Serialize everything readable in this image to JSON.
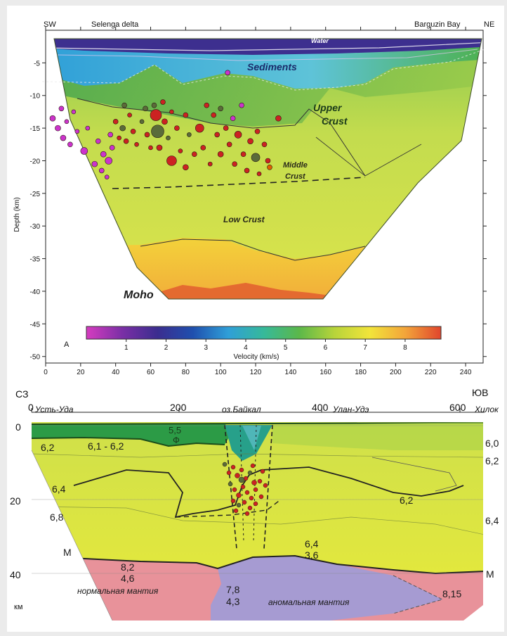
{
  "chart_data": [
    {
      "type": "heatmap",
      "title": "",
      "corner_labels": {
        "left": "SW",
        "right": "NE"
      },
      "top_labels": [
        "Selenga delta",
        "Barguzin Bay"
      ],
      "xlabel": "",
      "ylabel": "Depth (km)",
      "xlim": [
        0,
        250
      ],
      "ylim": [
        -51,
        0
      ],
      "x_ticks": [
        0,
        20,
        40,
        60,
        80,
        100,
        120,
        140,
        160,
        180,
        200,
        220,
        240
      ],
      "y_ticks": [
        -5,
        -10,
        -15,
        -20,
        -25,
        -30,
        -35,
        -40,
        -45,
        -50
      ],
      "layers": [
        "Water",
        "Sediments",
        "Upper Crust",
        "Middle Crust",
        "Low Crust",
        "Moho"
      ],
      "panel_letter": "A",
      "colorbar": {
        "label": "Velocity (km/s)",
        "ticks": [
          1,
          2,
          3,
          4,
          5,
          6,
          7,
          8
        ],
        "range": [
          0,
          8.9
        ],
        "colors": [
          "#d63cc0",
          "#7b2fa6",
          "#3b2d8f",
          "#1f4fae",
          "#2f9fd8",
          "#36b99a",
          "#5bb84a",
          "#b8d43a",
          "#f2e43a",
          "#f3a43a",
          "#e0452c"
        ]
      },
      "events": [
        {
          "x": 4,
          "y": -13.5,
          "r": 4,
          "c": "#cc33cc"
        },
        {
          "x": 7,
          "y": -15,
          "r": 4,
          "c": "#cc33cc"
        },
        {
          "x": 9,
          "y": -12,
          "r": 3.5,
          "c": "#cc33cc"
        },
        {
          "x": 10,
          "y": -16.5,
          "r": 4,
          "c": "#cc33cc"
        },
        {
          "x": 12,
          "y": -14,
          "r": 3,
          "c": "#cc33cc"
        },
        {
          "x": 14,
          "y": -17.5,
          "r": 3.5,
          "c": "#cc33cc"
        },
        {
          "x": 16,
          "y": -12.5,
          "r": 3,
          "c": "#cc33cc"
        },
        {
          "x": 18,
          "y": -15.5,
          "r": 3,
          "c": "#cc33cc"
        },
        {
          "x": 22,
          "y": -18.5,
          "r": 5,
          "c": "#cc33cc"
        },
        {
          "x": 24,
          "y": -15,
          "r": 3,
          "c": "#cc33cc"
        },
        {
          "x": 28,
          "y": -20.5,
          "r": 4,
          "c": "#cc33cc"
        },
        {
          "x": 30,
          "y": -17,
          "r": 3.5,
          "c": "#cc33cc"
        },
        {
          "x": 32,
          "y": -21.5,
          "r": 3.5,
          "c": "#cc33cc"
        },
        {
          "x": 33,
          "y": -19,
          "r": 4,
          "c": "#cc33cc"
        },
        {
          "x": 35,
          "y": -22.5,
          "r": 3,
          "c": "#cc33cc"
        },
        {
          "x": 36,
          "y": -20,
          "r": 5,
          "c": "#cc33cc"
        },
        {
          "x": 37,
          "y": -16,
          "r": 3.5,
          "c": "#cc33cc"
        },
        {
          "x": 38,
          "y": -18,
          "r": 3.5,
          "c": "#cc33cc"
        },
        {
          "x": 40,
          "y": -14,
          "r": 3.5,
          "c": "#cc2222"
        },
        {
          "x": 42,
          "y": -16.5,
          "r": 3,
          "c": "#cc2222"
        },
        {
          "x": 44,
          "y": -15,
          "r": 4,
          "c": "#5a6b3a"
        },
        {
          "x": 45,
          "y": -11.5,
          "r": 3.5,
          "c": "#5a6b3a"
        },
        {
          "x": 46,
          "y": -17,
          "r": 3.5,
          "c": "#cc2222"
        },
        {
          "x": 48,
          "y": -13,
          "r": 3,
          "c": "#cc2222"
        },
        {
          "x": 50,
          "y": -15.5,
          "r": 3.5,
          "c": "#cc2222"
        },
        {
          "x": 52,
          "y": -17.5,
          "r": 3,
          "c": "#cc2222"
        },
        {
          "x": 55,
          "y": -14,
          "r": 3,
          "c": "#5a6b3a"
        },
        {
          "x": 57,
          "y": -12,
          "r": 3.5,
          "c": "#5a6b3a"
        },
        {
          "x": 58,
          "y": -16,
          "r": 3.5,
          "c": "#cc2222"
        },
        {
          "x": 60,
          "y": -18,
          "r": 3,
          "c": "#cc2222"
        },
        {
          "x": 62,
          "y": -11.5,
          "r": 3.5,
          "c": "#5a6b3a"
        },
        {
          "x": 63,
          "y": -13,
          "r": 8,
          "c": "#cc2222"
        },
        {
          "x": 64,
          "y": -15.5,
          "r": 9,
          "c": "#5a6b3a"
        },
        {
          "x": 65,
          "y": -18,
          "r": 4,
          "c": "#cc2222"
        },
        {
          "x": 67,
          "y": -11,
          "r": 3.5,
          "c": "#cc2222"
        },
        {
          "x": 68,
          "y": -14,
          "r": 4,
          "c": "#cc2222"
        },
        {
          "x": 70,
          "y": -16.5,
          "r": 3,
          "c": "#5a6b3a"
        },
        {
          "x": 72,
          "y": -20,
          "r": 7,
          "c": "#cc2222"
        },
        {
          "x": 72,
          "y": -12.5,
          "r": 3,
          "c": "#cc2222"
        },
        {
          "x": 75,
          "y": -15,
          "r": 3.5,
          "c": "#cc2222"
        },
        {
          "x": 77,
          "y": -18.5,
          "r": 3,
          "c": "#cc2222"
        },
        {
          "x": 80,
          "y": -13,
          "r": 3.5,
          "c": "#cc2222"
        },
        {
          "x": 80,
          "y": -21,
          "r": 4,
          "c": "#cc2222"
        },
        {
          "x": 82,
          "y": -16,
          "r": 3,
          "c": "#5a6b3a"
        },
        {
          "x": 85,
          "y": -19,
          "r": 3.5,
          "c": "#cc2222"
        },
        {
          "x": 88,
          "y": -15,
          "r": 6,
          "c": "#cc2222"
        },
        {
          "x": 90,
          "y": -18,
          "r": 3.5,
          "c": "#cc2222"
        },
        {
          "x": 92,
          "y": -11.5,
          "r": 3.5,
          "c": "#cc2222"
        },
        {
          "x": 94,
          "y": -20.5,
          "r": 3,
          "c": "#cc2222"
        },
        {
          "x": 96,
          "y": -13,
          "r": 3.5,
          "c": "#cc2222"
        },
        {
          "x": 98,
          "y": -16,
          "r": 3.5,
          "c": "#cc2222"
        },
        {
          "x": 100,
          "y": -19,
          "r": 4,
          "c": "#cc2222"
        },
        {
          "x": 100,
          "y": -12,
          "r": 3.5,
          "c": "#5a6b3a"
        },
        {
          "x": 103,
          "y": -15,
          "r": 3.5,
          "c": "#cc2222"
        },
        {
          "x": 104,
          "y": -6.5,
          "r": 3.5,
          "c": "#cc33cc"
        },
        {
          "x": 105,
          "y": -17.5,
          "r": 3.5,
          "c": "#cc2222"
        },
        {
          "x": 107,
          "y": -13.5,
          "r": 3.5,
          "c": "#cc33cc"
        },
        {
          "x": 108,
          "y": -20.5,
          "r": 3.5,
          "c": "#cc2222"
        },
        {
          "x": 110,
          "y": -16,
          "r": 5,
          "c": "#cc2222"
        },
        {
          "x": 112,
          "y": -11.5,
          "r": 3.5,
          "c": "#cc33cc"
        },
        {
          "x": 113,
          "y": -19,
          "r": 3.5,
          "c": "#cc2222"
        },
        {
          "x": 115,
          "y": -21.5,
          "r": 3.5,
          "c": "#cc2222"
        },
        {
          "x": 117,
          "y": -17,
          "r": 4,
          "c": "#cc2222"
        },
        {
          "x": 120,
          "y": -19.5,
          "r": 6,
          "c": "#5a6b3a"
        },
        {
          "x": 121,
          "y": -15.5,
          "r": 3.5,
          "c": "#cc2222"
        },
        {
          "x": 122,
          "y": -22,
          "r": 3,
          "c": "#cc2222"
        },
        {
          "x": 125,
          "y": -17.5,
          "r": 3.5,
          "c": "#cc2222"
        },
        {
          "x": 127,
          "y": -20,
          "r": 3.5,
          "c": "#cc2222"
        },
        {
          "x": 128,
          "y": -21,
          "r": 3.5,
          "c": "#e06000"
        },
        {
          "x": 133,
          "y": -13.5,
          "r": 4,
          "c": "#cc2222"
        }
      ]
    },
    {
      "type": "heatmap",
      "title": "",
      "corner_labels": {
        "left": "СЗ",
        "right": "ЮВ"
      },
      "top_labels": [
        "Усть-Уда",
        "оз.Байкал",
        "Улан-Удэ",
        "Хилок"
      ],
      "xlim": [
        0,
        650
      ],
      "ylim": [
        55,
        0
      ],
      "x_ticks": [
        "0",
        "200",
        "400",
        "600"
      ],
      "y_ticks": [
        "0",
        "20",
        "40"
      ],
      "y_unit": "км",
      "velocity_labels": [
        "5,5",
        "Ф",
        "6,2",
        "6,1 - 6,2",
        "6,4",
        "6,8",
        "6,2",
        "6,4",
        "3,6",
        "6,0",
        "6,2",
        "6,4",
        "8,2",
        "4,6",
        "7,8",
        "4,3",
        "8,15"
      ],
      "boundary_labels": [
        "М",
        "М"
      ],
      "mantle_labels": [
        "нормальная мантия",
        "аномальная мантия"
      ]
    }
  ]
}
